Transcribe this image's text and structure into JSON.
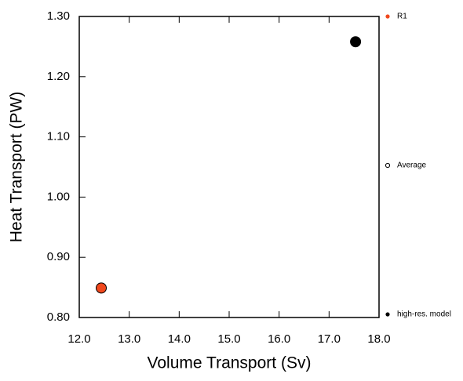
{
  "chart_data": {
    "type": "scatter",
    "x_label": "Volume Transport (Sv)",
    "y_label": "Heat Transport (PW)",
    "xlim": [
      12,
      18
    ],
    "ylim": [
      0.8,
      1.3
    ],
    "xticks": [
      {
        "value": 12,
        "label": "12.0"
      },
      {
        "value": 13,
        "label": "13.0"
      },
      {
        "value": 14,
        "label": "14.0"
      },
      {
        "value": 15,
        "label": "15.0"
      },
      {
        "value": 16,
        "label": "16.0"
      },
      {
        "value": 17,
        "label": "17.0"
      },
      {
        "value": 18,
        "label": "18.0"
      }
    ],
    "yticks": [
      {
        "value": 0.8,
        "label": "0.80"
      },
      {
        "value": 0.9,
        "label": "0.90"
      },
      {
        "value": 1,
        "label": "1.00"
      },
      {
        "value": 1.1,
        "label": "1.10"
      },
      {
        "value": 1.2,
        "label": "1.20"
      },
      {
        "value": 1.3,
        "label": "1.30"
      }
    ],
    "series": [
      {
        "name": "R1",
        "color": "#f0481d",
        "marker": "filled",
        "x": [
          12.44
        ],
        "values": [
          0.849
        ]
      },
      {
        "name": "Average",
        "color": "#000000",
        "marker": "open",
        "x": [],
        "values": []
      },
      {
        "name": "high-res. model",
        "color": "#000000",
        "marker": "filled",
        "x": [
          17.53
        ],
        "values": [
          1.258
        ]
      }
    ]
  }
}
